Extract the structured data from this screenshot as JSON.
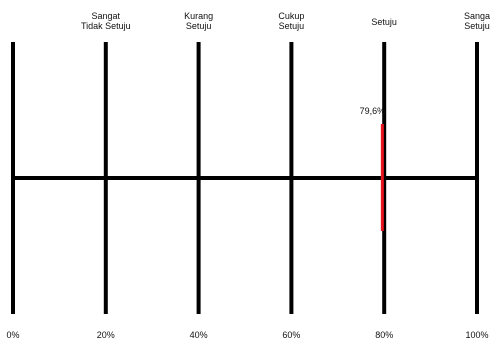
{
  "chart_data": {
    "type": "scale",
    "x_ticks": [
      "0%",
      "20%",
      "40%",
      "60%",
      "80%",
      "100%"
    ],
    "xlim": [
      0,
      100
    ],
    "categories": [
      {
        "label": [
          "Sangat",
          "Tidak Setuju"
        ],
        "position": 20
      },
      {
        "label": [
          "Kurang",
          "Setuju"
        ],
        "position": 40
      },
      {
        "label": [
          "Cukup",
          "Setuju"
        ],
        "position": 60
      },
      {
        "label": [
          "Setuju"
        ],
        "position": 80
      },
      {
        "label": [
          "Sanga",
          "Setuju"
        ],
        "position": 100
      }
    ],
    "marker": {
      "value": 79.6,
      "label": "79,6%",
      "color": "#e8141e"
    },
    "line_color": "#000000"
  }
}
